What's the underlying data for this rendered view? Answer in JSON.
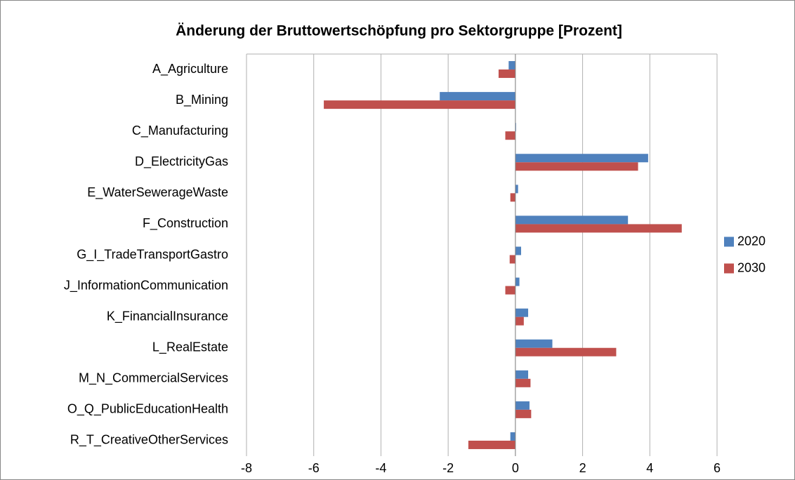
{
  "chart_data": {
    "type": "hbar",
    "title": "Änderung der Bruttowertschöpfung pro Sektorgruppe [Prozent]",
    "categories": [
      "A_Agriculture",
      "B_Mining",
      "C_Manufacturing",
      "D_ElectricityGas",
      "E_WaterSewerageWaste",
      "F_Construction",
      "G_I_TradeTransportGastro",
      "J_InformationCommunication",
      "K_FinancialInsurance",
      "L_RealEstate",
      "M_N_CommercialServices",
      "O_Q_PublicEducationHealth",
      "R_T_CreativeOtherServices"
    ],
    "series": [
      {
        "name": "2020",
        "color": "#4f81bd",
        "values": [
          -0.2,
          -2.25,
          0.02,
          3.95,
          0.08,
          3.35,
          0.17,
          0.12,
          0.38,
          1.1,
          0.38,
          0.42,
          -0.15
        ]
      },
      {
        "name": "2030",
        "color": "#c0504d",
        "values": [
          -0.5,
          -5.7,
          -0.3,
          3.65,
          -0.15,
          4.95,
          -0.17,
          -0.3,
          0.25,
          3.0,
          0.45,
          0.47,
          -1.4
        ]
      }
    ],
    "xlim": [
      -8,
      6
    ],
    "xticks": [
      -8,
      -6,
      -4,
      -2,
      0,
      2,
      4,
      6
    ],
    "grid": true,
    "legend": "right"
  }
}
